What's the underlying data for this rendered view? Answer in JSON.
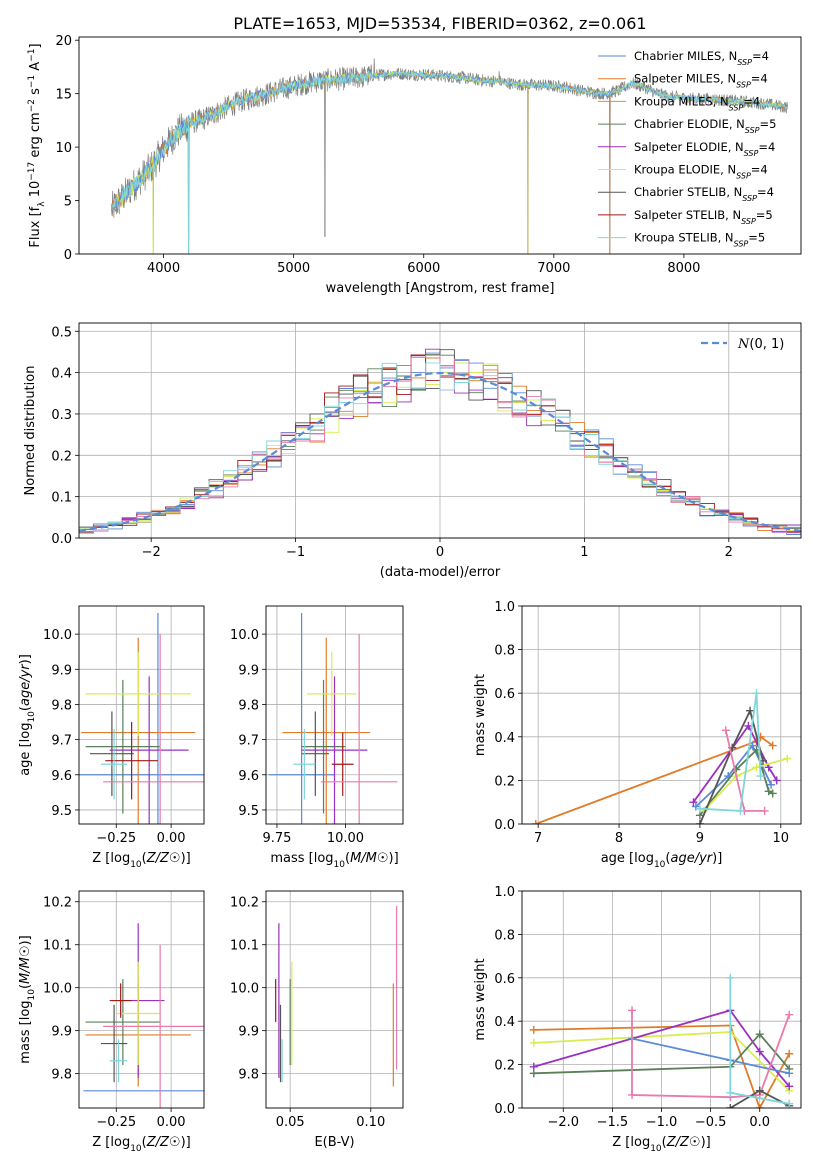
{
  "figure": {
    "title": "PLATE=1653, MJD=53534, FIBERID=0362, z=0.061"
  },
  "palette": {
    "Chabrier MILES": "#5b8ad6",
    "Salpeter MILES": "#e07b2a",
    "Kroupa MILES": "#e07b2a",
    "Chabrier ELODIE": "#5a7f5a",
    "Salpeter ELODIE": "#9b30c0",
    "Kroupa ELODIE": "#d8ec52",
    "Chabrier STELIB": "#555555",
    "Salpeter STELIB": "#a01818",
    "Kroupa STELIB": "#7fd6dc",
    "data": "#808080",
    "pink": "#e87aac"
  },
  "chart_data": [
    {
      "id": "spectrum",
      "type": "line",
      "title": "PLATE=1653, MJD=53534, FIBERID=0362, z=0.061",
      "xlabel": "wavelength [Angstrom, rest frame]",
      "ylabel": "Flux [f_λ 10^-17 erg cm^-2 s^-1 A^-1]",
      "xlim": [
        3350,
        8900
      ],
      "ylim": [
        0,
        20.3
      ],
      "xticks": [
        4000,
        5000,
        6000,
        7000,
        8000
      ],
      "yticks": [
        0,
        5,
        10,
        15,
        20
      ],
      "grid": false,
      "legend": "upper right",
      "legend_entries": [
        {
          "label": "Chabrier MILES, N_SSP=4",
          "color": "#5b8ad6"
        },
        {
          "label": "Salpeter MILES, N_SSP=4",
          "color": "#e07b2a"
        },
        {
          "label": "Kroupa MILES, N_SSP=4",
          "color": "#e0902a"
        },
        {
          "label": "Chabrier ELODIE, N_SSP=5",
          "color": "#5a7f5a"
        },
        {
          "label": "Salpeter ELODIE, N_SSP=4",
          "color": "#9b30c0"
        },
        {
          "label": "Kroupa ELODIE, N_SSP=4",
          "color": "#d8ec52"
        },
        {
          "label": "Chabrier STELIB, N_SSP=4",
          "color": "#555555"
        },
        {
          "label": "Salpeter STELIB, N_SSP=5",
          "color": "#a01818"
        },
        {
          "label": "Kroupa STELIB, N_SSP=5",
          "color": "#7fd6dc"
        }
      ],
      "continuum": [
        [
          3600,
          4.2
        ],
        [
          3700,
          5.5
        ],
        [
          3800,
          6.8
        ],
        [
          3900,
          8.0
        ],
        [
          4000,
          9.8
        ],
        [
          4100,
          11.3
        ],
        [
          4200,
          12.2
        ],
        [
          4300,
          12.6
        ],
        [
          4400,
          13.2
        ],
        [
          4500,
          13.8
        ],
        [
          4600,
          14.3
        ],
        [
          4700,
          14.7
        ],
        [
          4800,
          15.0
        ],
        [
          4900,
          15.4
        ],
        [
          5000,
          15.7
        ],
        [
          5100,
          16.0
        ],
        [
          5200,
          16.2
        ],
        [
          5300,
          16.3
        ],
        [
          5400,
          16.4
        ],
        [
          5500,
          16.5
        ],
        [
          5600,
          16.7
        ],
        [
          5700,
          16.8
        ],
        [
          5800,
          16.9
        ],
        [
          5900,
          16.8
        ],
        [
          6000,
          16.8
        ],
        [
          6100,
          16.7
        ],
        [
          6200,
          16.6
        ],
        [
          6300,
          16.5
        ],
        [
          6400,
          16.3
        ],
        [
          6500,
          16.2
        ],
        [
          6600,
          16.1
        ],
        [
          6700,
          15.9
        ],
        [
          6800,
          15.8
        ],
        [
          6900,
          15.8
        ],
        [
          7000,
          15.7
        ],
        [
          7100,
          15.6
        ],
        [
          7200,
          15.3
        ],
        [
          7300,
          15.1
        ],
        [
          7400,
          15.0
        ],
        [
          7500,
          15.3
        ],
        [
          7600,
          16.0
        ],
        [
          7700,
          15.6
        ],
        [
          7800,
          15.0
        ],
        [
          7900,
          14.7
        ],
        [
          8000,
          14.6
        ],
        [
          8100,
          14.5
        ],
        [
          8200,
          14.5
        ],
        [
          8300,
          14.4
        ],
        [
          8400,
          14.3
        ],
        [
          8500,
          14.2
        ],
        [
          8600,
          14.1
        ],
        [
          8700,
          13.9
        ],
        [
          8800,
          13.7
        ]
      ],
      "spikes": [
        {
          "x": 3920,
          "y": 0
        },
        {
          "x": 4190,
          "y": 0
        },
        {
          "x": 4195,
          "y": 0
        },
        {
          "x": 6800,
          "y": 0
        },
        {
          "x": 7430,
          "y": 0
        },
        {
          "x": 5240,
          "y": 1.6
        },
        {
          "x": 6580,
          "y": 17.1
        },
        {
          "x": 5620,
          "y": 18.3
        }
      ]
    },
    {
      "id": "residual-hist",
      "type": "histogram",
      "xlabel": "(data-model)/error",
      "ylabel": "Normed distribution",
      "xlim": [
        -2.5,
        2.5
      ],
      "ylim": [
        0,
        0.52
      ],
      "xticks": [
        -2,
        -1,
        0,
        1,
        2
      ],
      "yticks": [
        0.0,
        0.1,
        0.2,
        0.3,
        0.4,
        0.5
      ],
      "grid": true,
      "legend": "upper right",
      "legend_entries": [
        {
          "label": "N(0,1)",
          "color": "#5b8ad6"
        }
      ],
      "bin_width": 0.1
    },
    {
      "id": "age-vs-Z",
      "type": "errorbar",
      "xlabel": "Z [log10(Z/Z☉)]",
      "ylabel": "age [log10(age/yr)]",
      "xlim": [
        -0.42,
        0.15
      ],
      "ylim": [
        9.46,
        10.08
      ],
      "xticks": [
        -0.25,
        0.0
      ],
      "yticks": [
        9.5,
        9.6,
        9.7,
        9.8,
        9.9,
        10.0
      ],
      "grid": true,
      "points": [
        {
          "series": "Chabrier MILES",
          "x": -0.06,
          "xe": 0.36,
          "y": 9.6,
          "ye": 0.46,
          "color": "#5b8ad6"
        },
        {
          "series": "Salpeter MILES",
          "x": -0.15,
          "xe": 0.26,
          "y": 9.72,
          "ye": 0.27,
          "color": "#e07b2a"
        },
        {
          "series": "Chabrier ELODIE",
          "x": -0.22,
          "xe": 0.17,
          "y": 9.68,
          "ye": 0.19,
          "color": "#5a7f5a"
        },
        {
          "series": "Salpeter ELODIE",
          "x": -0.1,
          "xe": 0.18,
          "y": 9.67,
          "ye": 0.21,
          "color": "#9b30c0"
        },
        {
          "series": "Kroupa ELODIE",
          "x": -0.15,
          "xe": 0.24,
          "y": 9.83,
          "ye": 0.12,
          "color": "#d8ec52"
        },
        {
          "series": "Chabrier STELIB",
          "x": -0.27,
          "xe": 0.1,
          "y": 9.66,
          "ye": 0.12,
          "color": "#555555"
        },
        {
          "series": "Salpeter STELIB",
          "x": -0.18,
          "xe": 0.12,
          "y": 9.64,
          "ye": 0.11,
          "color": "#a01818"
        },
        {
          "series": "Kroupa STELIB",
          "x": -0.26,
          "xe": 0.06,
          "y": 9.63,
          "ye": 0.1,
          "color": "#7fd6dc"
        },
        {
          "series": "pink",
          "x": -0.05,
          "xe": 0.26,
          "y": 9.58,
          "ye": 0.42,
          "color": "#e87aac"
        }
      ]
    },
    {
      "id": "age-vs-mass",
      "type": "errorbar",
      "xlabel": "mass [log10(M/M☉)]",
      "ylabel": "",
      "xlim": [
        9.71,
        10.21
      ],
      "ylim": [
        9.46,
        10.08
      ],
      "xticks": [
        9.75,
        10.0
      ],
      "yticks": [
        9.5,
        9.6,
        9.7,
        9.8,
        9.9,
        10.0
      ],
      "grid": true,
      "points": [
        {
          "series": "Chabrier MILES",
          "x": 9.84,
          "xe": 0.12,
          "y": 9.6,
          "ye": 0.46,
          "color": "#5b8ad6"
        },
        {
          "series": "Salpeter MILES",
          "x": 9.93,
          "xe": 0.16,
          "y": 9.72,
          "ye": 0.27,
          "color": "#e07b2a"
        },
        {
          "series": "Chabrier ELODIE",
          "x": 9.92,
          "xe": 0.08,
          "y": 9.68,
          "ye": 0.19,
          "color": "#5a7f5a"
        },
        {
          "series": "Salpeter ELODIE",
          "x": 9.96,
          "xe": 0.12,
          "y": 9.67,
          "ye": 0.21,
          "color": "#9b30c0"
        },
        {
          "series": "Kroupa ELODIE",
          "x": 9.95,
          "xe": 0.09,
          "y": 9.83,
          "ye": 0.12,
          "color": "#d8ec52"
        },
        {
          "series": "Chabrier STELIB",
          "x": 9.89,
          "xe": 0.05,
          "y": 9.66,
          "ye": 0.12,
          "color": "#555555"
        },
        {
          "series": "Salpeter STELIB",
          "x": 9.99,
          "xe": 0.04,
          "y": 9.63,
          "ye": 0.09,
          "color": "#a01818"
        },
        {
          "series": "Kroupa STELIB",
          "x": 9.85,
          "xe": 0.04,
          "y": 9.63,
          "ye": 0.1,
          "color": "#7fd6dc"
        },
        {
          "series": "pink",
          "x": 10.05,
          "xe": 0.14,
          "y": 9.58,
          "ye": 0.42,
          "color": "#e87aac"
        }
      ]
    },
    {
      "id": "massweight-vs-age",
      "type": "line",
      "xlabel": "age [log10(age/yr)]",
      "ylabel": "mass weight",
      "xlim": [
        6.8,
        10.25
      ],
      "ylim": [
        0,
        1.0
      ],
      "xticks": [
        7,
        8,
        9,
        10
      ],
      "yticks": [
        0.0,
        0.2,
        0.4,
        0.6,
        0.8,
        1.0
      ],
      "grid": true,
      "series": [
        {
          "name": "Salpeter MILES",
          "color": "#e07b2a",
          "x": [
            6.97,
            9.7,
            9.75,
            9.9
          ],
          "y": [
            0.0,
            0.38,
            0.4,
            0.36
          ]
        },
        {
          "name": "Chabrier MILES",
          "color": "#5b8ad6",
          "x": [
            8.95,
            9.35,
            9.65,
            9.88
          ],
          "y": [
            0.08,
            0.22,
            0.36,
            0.18
          ]
        },
        {
          "name": "Chabrier ELODIE",
          "color": "#5a7f5a",
          "x": [
            9.0,
            9.45,
            9.7,
            9.85,
            9.9
          ],
          "y": [
            0.04,
            0.25,
            0.34,
            0.15,
            0.14
          ]
        },
        {
          "name": "Salpeter ELODIE",
          "color": "#9b30c0",
          "x": [
            8.92,
            9.6,
            9.85,
            9.95
          ],
          "y": [
            0.1,
            0.45,
            0.26,
            0.2
          ]
        },
        {
          "name": "Kroupa ELODIE",
          "color": "#d8ec52",
          "x": [
            9.05,
            9.45,
            9.7,
            10.08
          ],
          "y": [
            0.06,
            0.22,
            0.26,
            0.3
          ]
        },
        {
          "name": "Chabrier STELIB",
          "color": "#555555",
          "x": [
            9.0,
            9.4,
            9.62,
            9.78
          ],
          "y": [
            0.0,
            0.35,
            0.52,
            0.29
          ]
        },
        {
          "name": "pink",
          "color": "#e87aac",
          "x": [
            9.32,
            9.55,
            9.8
          ],
          "y": [
            0.43,
            0.06,
            0.06
          ]
        },
        {
          "name": "Kroupa STELIB",
          "color": "#7fd6dc",
          "x": [
            9.0,
            9.5,
            9.7,
            9.75
          ],
          "y": [
            0.07,
            0.06,
            0.6,
            0.22
          ]
        }
      ]
    },
    {
      "id": "mass-vs-Z",
      "type": "errorbar",
      "xlabel": "Z [log10(Z/Z☉)]",
      "ylabel": "mass [log10(M/M☉)]",
      "xlim": [
        -0.42,
        0.15
      ],
      "ylim": [
        9.72,
        10.225
      ],
      "xticks": [
        -0.25,
        0.0
      ],
      "yticks": [
        9.8,
        9.9,
        10.0,
        10.1,
        10.2
      ],
      "grid": true,
      "points": [
        {
          "series": "Chabrier MILES",
          "x": -0.06,
          "xe": 0.34,
          "y": 9.76,
          "ye": 0.0,
          "color": "#5b8ad6"
        },
        {
          "series": "Salpeter MILES",
          "x": -0.15,
          "xe": 0.24,
          "y": 9.89,
          "ye": 0.12,
          "color": "#e07b2a"
        },
        {
          "series": "Chabrier ELODIE",
          "x": -0.22,
          "xe": 0.17,
          "y": 9.92,
          "ye": 0.1,
          "color": "#5a7f5a"
        },
        {
          "series": "Salpeter ELODIE",
          "x": -0.15,
          "xe": 0.12,
          "y": 9.97,
          "ye": 0.18,
          "color": "#9b30c0"
        },
        {
          "series": "Kroupa ELODIE",
          "x": -0.15,
          "xe": 0.1,
          "y": 9.94,
          "ye": 0.12,
          "color": "#d8ec52"
        },
        {
          "series": "Chabrier STELIB",
          "x": -0.26,
          "xe": 0.06,
          "y": 9.87,
          "ye": 0.09,
          "color": "#555555"
        },
        {
          "series": "Salpeter STELIB",
          "x": -0.23,
          "xe": 0.05,
          "y": 9.97,
          "ye": 0.04,
          "color": "#a01818"
        },
        {
          "series": "Kroupa STELIB",
          "x": -0.24,
          "xe": 0.04,
          "y": 9.83,
          "ye": 0.05,
          "color": "#7fd6dc"
        },
        {
          "series": "pink",
          "x": -0.05,
          "xe": 0.26,
          "y": 9.91,
          "ye": 0.19,
          "color": "#e87aac"
        }
      ]
    },
    {
      "id": "mass-vs-EBV",
      "type": "errorbar",
      "xlabel": "E(B-V)",
      "ylabel": "",
      "xlim": [
        0.035,
        0.12
      ],
      "ylim": [
        9.72,
        10.225
      ],
      "xticks": [
        0.05,
        0.1
      ],
      "yticks": [
        9.8,
        9.9,
        10.0,
        10.1,
        10.2
      ],
      "grid": true,
      "points": [
        {
          "series": "Salpeter STELIB",
          "x": 0.041,
          "xe": 0.0,
          "y": 9.97,
          "ye": 0.05,
          "color": "#a01818"
        },
        {
          "series": "Salpeter ELODIE",
          "x": 0.043,
          "xe": 0.0,
          "y": 9.97,
          "ye": 0.18,
          "color": "#9b30c0"
        },
        {
          "series": "Chabrier STELIB",
          "x": 0.044,
          "xe": 0.0,
          "y": 9.87,
          "ye": 0.09,
          "color": "#555555"
        },
        {
          "series": "Kroupa STELIB",
          "x": 0.045,
          "xe": 0.0,
          "y": 9.83,
          "ye": 0.05,
          "color": "#7fd6dc"
        },
        {
          "series": "Kroupa ELODIE",
          "x": 0.051,
          "xe": 0.0,
          "y": 9.94,
          "ye": 0.12,
          "color": "#d8ec52"
        },
        {
          "series": "Chabrier ELODIE",
          "x": 0.05,
          "xe": 0.0,
          "y": 9.92,
          "ye": 0.1,
          "color": "#5a7f5a"
        },
        {
          "series": "Salpeter MILES",
          "x": 0.114,
          "xe": 0.0,
          "y": 9.89,
          "ye": 0.12,
          "color": "#e07b2a"
        },
        {
          "series": "Chabrier MILES",
          "x": 0.115,
          "xe": 0.0,
          "y": 9.76,
          "ye": 0.0,
          "color": "#5b8ad6"
        },
        {
          "series": "pink",
          "x": 0.116,
          "xe": 0.0,
          "y": 10.0,
          "ye": 0.19,
          "color": "#e87aac"
        }
      ]
    },
    {
      "id": "massweight-vs-Z",
      "type": "line",
      "xlabel": "Z [log10(Z/Z☉)]",
      "ylabel": "mass weight",
      "xlim": [
        -2.42,
        0.42
      ],
      "ylim": [
        0,
        1.0
      ],
      "xticks": [
        -2.0,
        -1.5,
        -1.0,
        -0.5,
        0.0
      ],
      "yticks": [
        0.0,
        0.2,
        0.4,
        0.6,
        0.8,
        1.0
      ],
      "grid": true,
      "series": [
        {
          "name": "Salpeter MILES",
          "color": "#e07b2a",
          "x": [
            -2.3,
            -0.3,
            0.0,
            0.3
          ],
          "y": [
            0.36,
            0.38,
            0.0,
            0.25
          ]
        },
        {
          "name": "Kroupa ELODIE",
          "color": "#d8ec52",
          "x": [
            -2.3,
            -0.3,
            0.3
          ],
          "y": [
            0.3,
            0.35,
            0.08
          ]
        },
        {
          "name": "Salpeter ELODIE",
          "color": "#9b30c0",
          "x": [
            -2.3,
            -0.3,
            0.0,
            0.3
          ],
          "y": [
            0.19,
            0.45,
            0.26,
            0.1
          ]
        },
        {
          "name": "Chabrier ELODIE",
          "color": "#5a7f5a",
          "x": [
            -2.3,
            -0.3,
            0.0,
            0.3
          ],
          "y": [
            0.16,
            0.19,
            0.34,
            0.18
          ]
        },
        {
          "name": "Chabrier MILES",
          "color": "#5b8ad6",
          "x": [
            -1.3,
            -0.3,
            0.3
          ],
          "y": [
            0.32,
            0.22,
            0.16
          ]
        },
        {
          "name": "pink",
          "color": "#e87aac",
          "x": [
            -1.3,
            -1.3,
            -0.3,
            0.0,
            0.3
          ],
          "y": [
            0.45,
            0.06,
            0.05,
            0.06,
            0.43
          ]
        },
        {
          "name": "Chabrier STELIB",
          "color": "#555555",
          "x": [
            -0.3,
            0.0,
            0.3
          ],
          "y": [
            0.0,
            0.08,
            0.01
          ]
        },
        {
          "name": "Kroupa STELIB",
          "color": "#7fd6dc",
          "x": [
            -0.3,
            -0.3,
            0.3
          ],
          "y": [
            0.6,
            0.07,
            0.02
          ]
        }
      ]
    }
  ]
}
